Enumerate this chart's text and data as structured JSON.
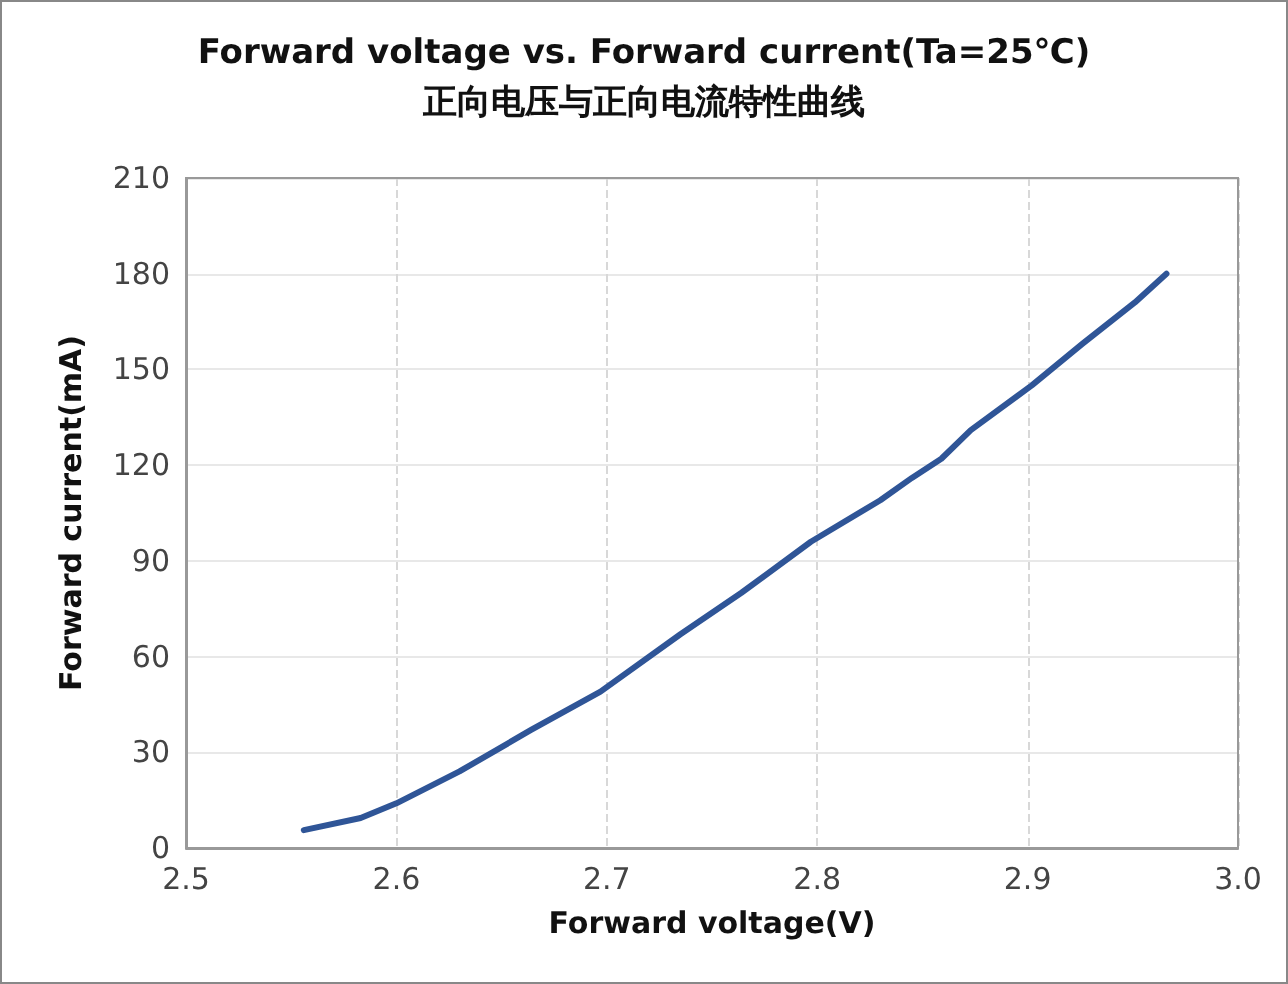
{
  "chart_data": {
    "type": "line",
    "title": "Forward voltage vs. Forward current(Ta=25℃)",
    "subtitle": "正向电压与正向电流特性曲线",
    "xlabel": "Forward voltage(V)",
    "ylabel": "Forward current(mA)",
    "x": [
      2.556,
      2.583,
      2.6,
      2.63,
      2.664,
      2.697,
      2.735,
      2.764,
      2.797,
      2.83,
      2.845,
      2.859,
      2.873,
      2.902,
      2.926,
      2.951,
      2.966
    ],
    "series": [
      {
        "color": "#2f5597",
        "values": [
          5.6,
          9.4,
          14,
          24,
          37,
          49,
          67,
          80,
          96,
          109,
          116,
          122,
          131,
          145,
          158,
          171,
          180
        ]
      }
    ],
    "xlim": [
      2.5,
      3.0
    ],
    "xticks": [
      2.5,
      2.6,
      2.7,
      2.8,
      2.9,
      {
        "value": 3.0,
        "label": "3.0"
      }
    ],
    "ylim": [
      0,
      210
    ],
    "yticks": [
      0,
      30,
      60,
      90,
      120,
      150,
      180,
      210
    ],
    "grid": true,
    "marker": "none",
    "line_style": "solid"
  }
}
